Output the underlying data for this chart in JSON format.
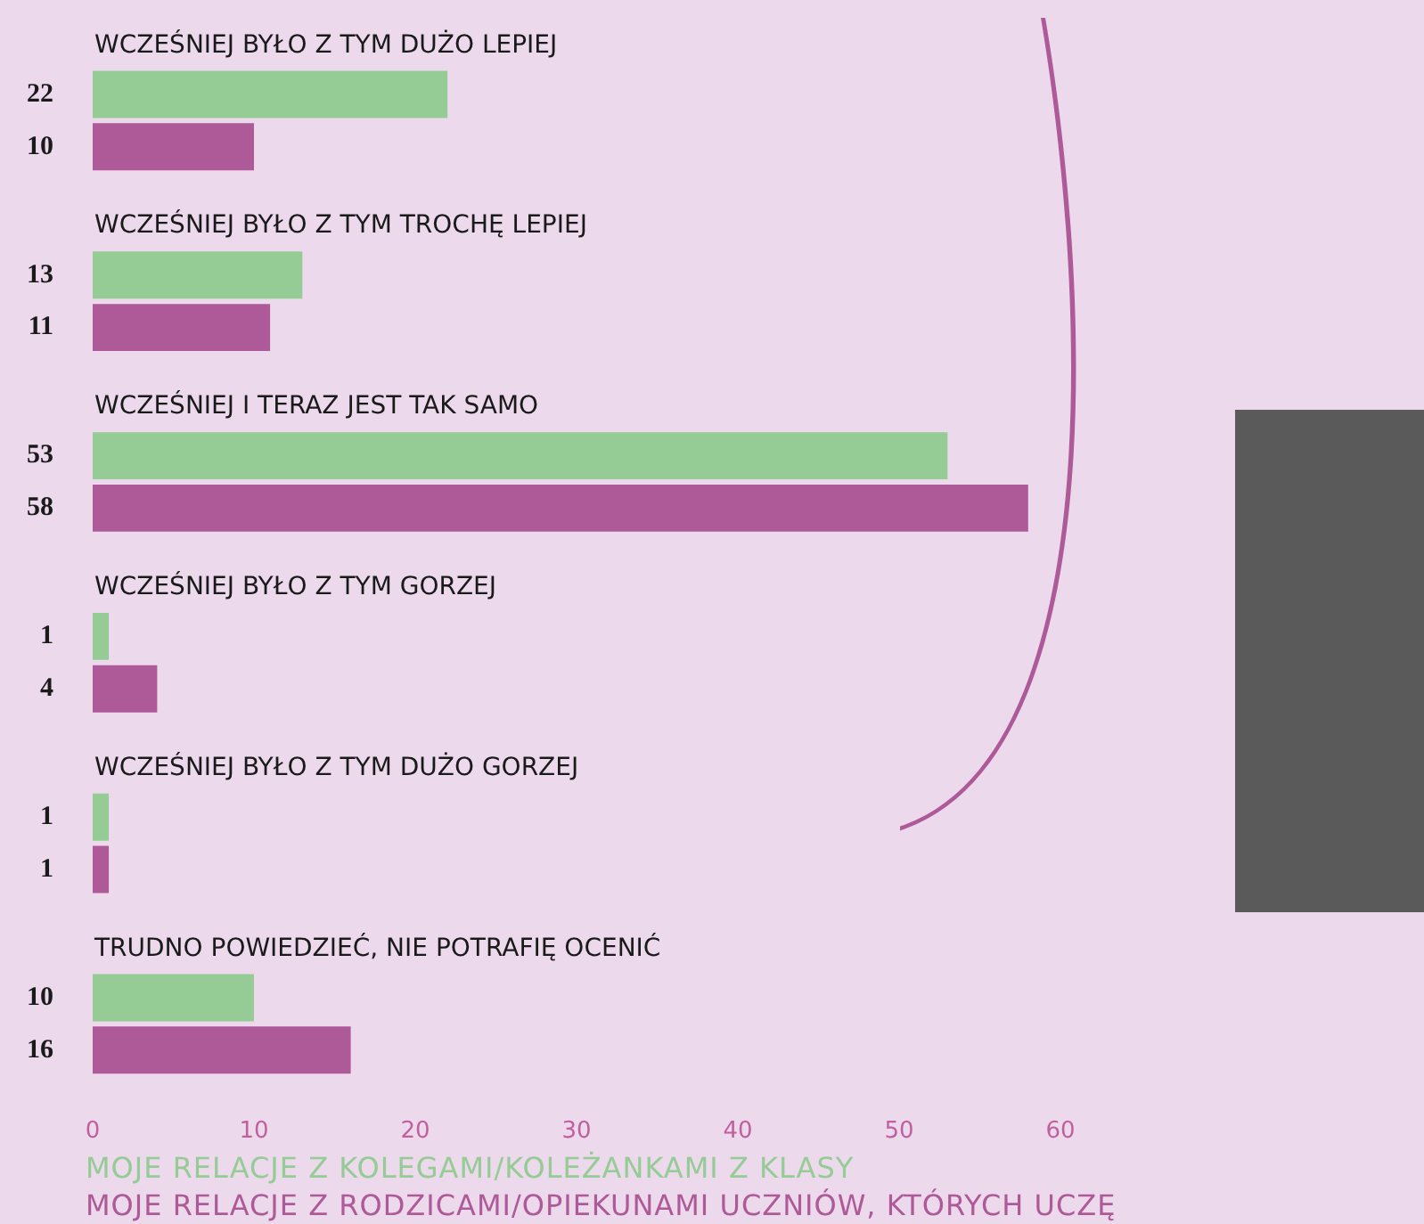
{
  "chart_data": {
    "type": "bar",
    "orientation": "horizontal",
    "categories": [
      "WCZEŚNIEJ BYŁO Z TYM DUŻO LEPIEJ",
      "WCZEŚNIEJ BYŁO Z TYM TROCHĘ LEPIEJ",
      "WCZEŚNIEJ I TERAZ JEST TAK SAMO",
      "WCZEŚNIEJ BYŁO Z TYM GORZEJ",
      "WCZEŚNIEJ BYŁO Z TYM DUŻO GORZEJ",
      "TRUDNO POWIEDZIEĆ, NIE POTRAFIĘ OCENIĆ"
    ],
    "series": [
      {
        "name": "MOJE RELACJE Z KOLEGAMI/KOLEŻANKAMI Z KLASY",
        "color": "#95cb95",
        "values": [
          22,
          13,
          53,
          1,
          1,
          10
        ]
      },
      {
        "name": "MOJE RELACJE Z RODZICAMI/OPIEKUNAMI UCZNIÓW, KTÓRYCH UCZĘ",
        "color": "#ae5a98",
        "values": [
          10,
          11,
          58,
          4,
          1,
          16
        ]
      }
    ],
    "xlim": [
      0,
      60
    ],
    "xticks": [
      0,
      10,
      20,
      30,
      40,
      50,
      60
    ],
    "data_labels": true,
    "grid": false,
    "legend": "bottom"
  }
}
